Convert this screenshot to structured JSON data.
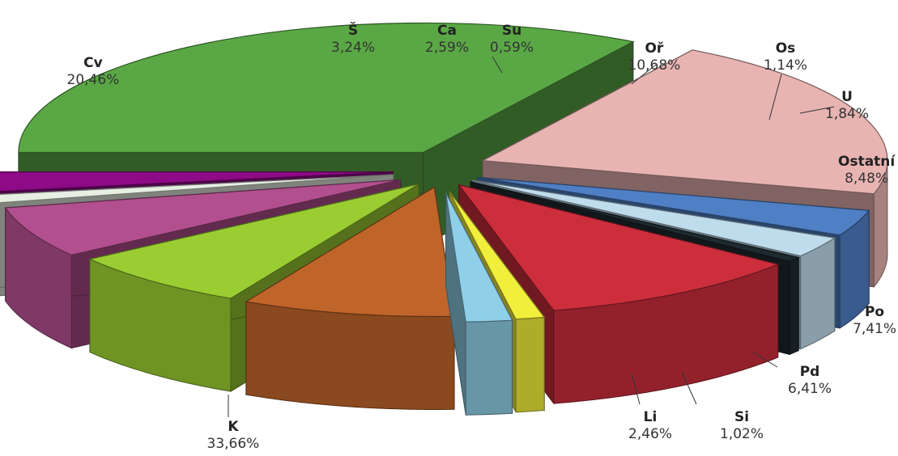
{
  "chart_data": {
    "type": "pie",
    "three_d": true,
    "exploded": true,
    "slices": [
      {
        "name": "K",
        "value": 33.66,
        "label": "33,66%",
        "color": "#5aa845"
      },
      {
        "name": "Cv",
        "value": 20.46,
        "label": "20,46%",
        "color": "#e8b4b2"
      },
      {
        "name": "Š",
        "value": 3.24,
        "label": "3,24%",
        "color": "#4f7fc4"
      },
      {
        "name": "Ca",
        "value": 2.59,
        "label": "2,59%",
        "color": "#bfdcec"
      },
      {
        "name": "Su",
        "value": 0.59,
        "label": "0,59%",
        "color": "#1e2a30"
      },
      {
        "name": "Oř",
        "value": 10.68,
        "label": "10,68%",
        "color": "#cc2e3c"
      },
      {
        "name": "Os",
        "value": 1.14,
        "label": "1,14%",
        "color": "#f1ef3c"
      },
      {
        "name": "U",
        "value": 1.84,
        "label": "1,84%",
        "color": "#8fd0e8"
      },
      {
        "name": "Ostatní",
        "value": 8.48,
        "label": "8,48%",
        "color": "#c0652a"
      },
      {
        "name": "Po",
        "value": 7.41,
        "label": "7,41%",
        "color": "#9acd32"
      },
      {
        "name": "Pd",
        "value": 6.41,
        "label": "6,41%",
        "color": "#b24f8e"
      },
      {
        "name": "Si",
        "value": 1.02,
        "label": "1,02%",
        "color": "#e6efe2"
      },
      {
        "name": "Li",
        "value": 2.46,
        "label": "2,46%",
        "color": "#8e0a86"
      }
    ]
  }
}
